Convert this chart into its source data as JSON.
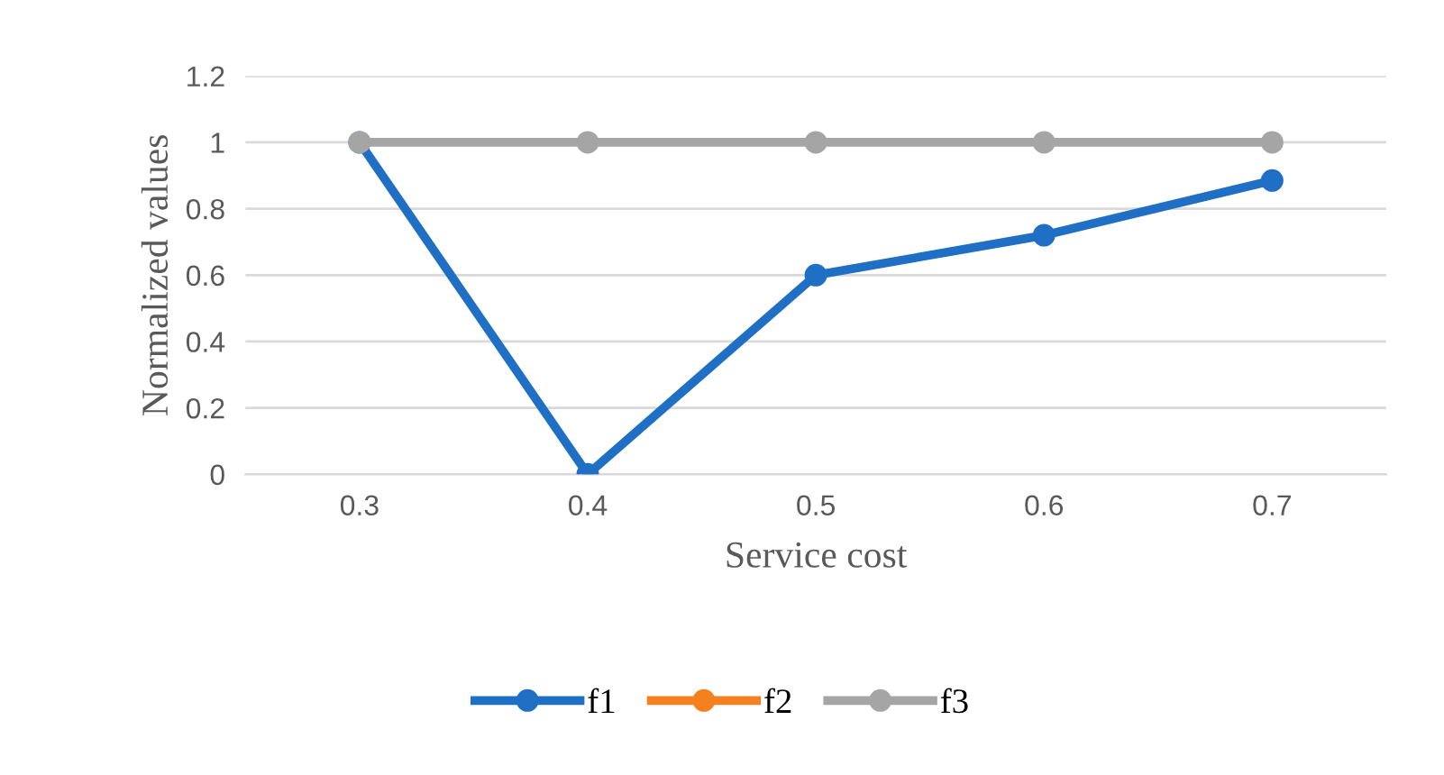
{
  "chart_data": {
    "type": "line",
    "xlabel": "Service cost",
    "ylabel": "Normalized values",
    "categories": [
      "0.3",
      "0.4",
      "0.5",
      "0.6",
      "0.7"
    ],
    "series": [
      {
        "name": "f1",
        "color": "#1f6fc5",
        "values": [
          1,
          0,
          0.6,
          0.72,
          0.885
        ]
      },
      {
        "name": "f2",
        "color": "#f4801f",
        "values": [
          null,
          null,
          null,
          null,
          null
        ]
      },
      {
        "name": "f3",
        "color": "#a5a5a5",
        "values": [
          1,
          1,
          1,
          1,
          1
        ]
      }
    ],
    "ylim": [
      0,
      1.2
    ],
    "yticks": [
      0,
      0.2,
      0.4,
      0.6,
      0.8,
      1,
      1.2
    ],
    "grid": "y",
    "legend": "bottom",
    "marker": "circle",
    "line_style": "solid"
  }
}
